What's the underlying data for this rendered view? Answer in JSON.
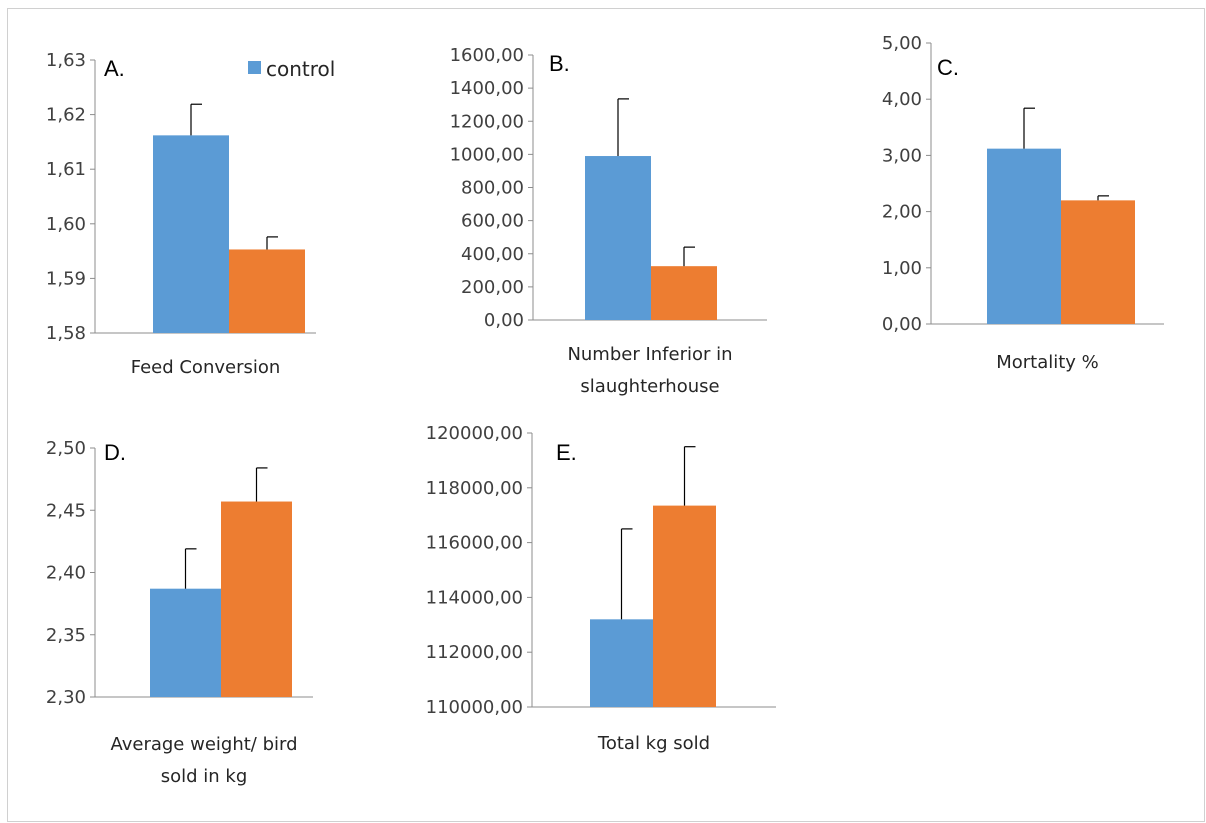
{
  "colors": {
    "control": "#5b9bd5",
    "treatment": "#ed7d31",
    "axis": "#8c8c8c",
    "error": "#000000"
  },
  "legend": {
    "label": "control"
  },
  "chart_data": [
    {
      "type": "bar",
      "panel": "A.",
      "xlabel": [
        "Feed Conversion"
      ],
      "ylim": [
        1.58,
        1.63
      ],
      "yticks": [
        "1,58",
        "1,59",
        "1,60",
        "1,61",
        "1,62",
        "1,63"
      ],
      "series": [
        {
          "name": "control",
          "values": [
            1.6162
          ],
          "error": [
            0.0057
          ]
        },
        {
          "values": [
            1.5953
          ],
          "error": [
            0.0023
          ]
        }
      ]
    },
    {
      "type": "bar",
      "panel": "B.",
      "xlabel": [
        "Number Inferior in",
        "slaughterhouse"
      ],
      "ylim": [
        0,
        1600
      ],
      "yticks": [
        "0,00",
        "200,00",
        "400,00",
        "600,00",
        "800,00",
        "1000,00",
        "1200,00",
        "1400,00",
        "1600,00"
      ],
      "series": [
        {
          "name": "control",
          "values": [
            990
          ],
          "error": [
            345
          ]
        },
        {
          "values": [
            325
          ],
          "error": [
            115
          ]
        }
      ]
    },
    {
      "type": "bar",
      "panel": "C.",
      "xlabel": [
        "Mortality %"
      ],
      "ylim": [
        0,
        5
      ],
      "yticks": [
        "0,00",
        "1,00",
        "2,00",
        "3,00",
        "4,00",
        "5,00"
      ],
      "series": [
        {
          "name": "control",
          "values": [
            3.12
          ],
          "error": [
            0.72
          ]
        },
        {
          "values": [
            2.2
          ],
          "error": [
            0.08
          ]
        }
      ]
    },
    {
      "type": "bar",
      "panel": "D.",
      "xlabel": [
        "Average weight/ bird",
        "sold in kg"
      ],
      "ylim": [
        2.3,
        2.5
      ],
      "yticks": [
        "2,30",
        "2,35",
        "2,40",
        "2,45",
        "2,50"
      ],
      "series": [
        {
          "name": "control",
          "values": [
            2.387
          ],
          "error": [
            0.032
          ]
        },
        {
          "values": [
            2.457
          ],
          "error": [
            0.027
          ]
        }
      ]
    },
    {
      "type": "bar",
      "panel": "E.",
      "xlabel": [
        "Total kg sold"
      ],
      "ylim": [
        110000,
        120000
      ],
      "yticks": [
        "110000,00",
        "112000,00",
        "114000,00",
        "116000,00",
        "118000,00",
        "120000,00"
      ],
      "series": [
        {
          "name": "control",
          "values": [
            113200
          ],
          "error": [
            3300
          ]
        },
        {
          "values": [
            117350
          ],
          "error": [
            2150
          ]
        }
      ]
    }
  ]
}
